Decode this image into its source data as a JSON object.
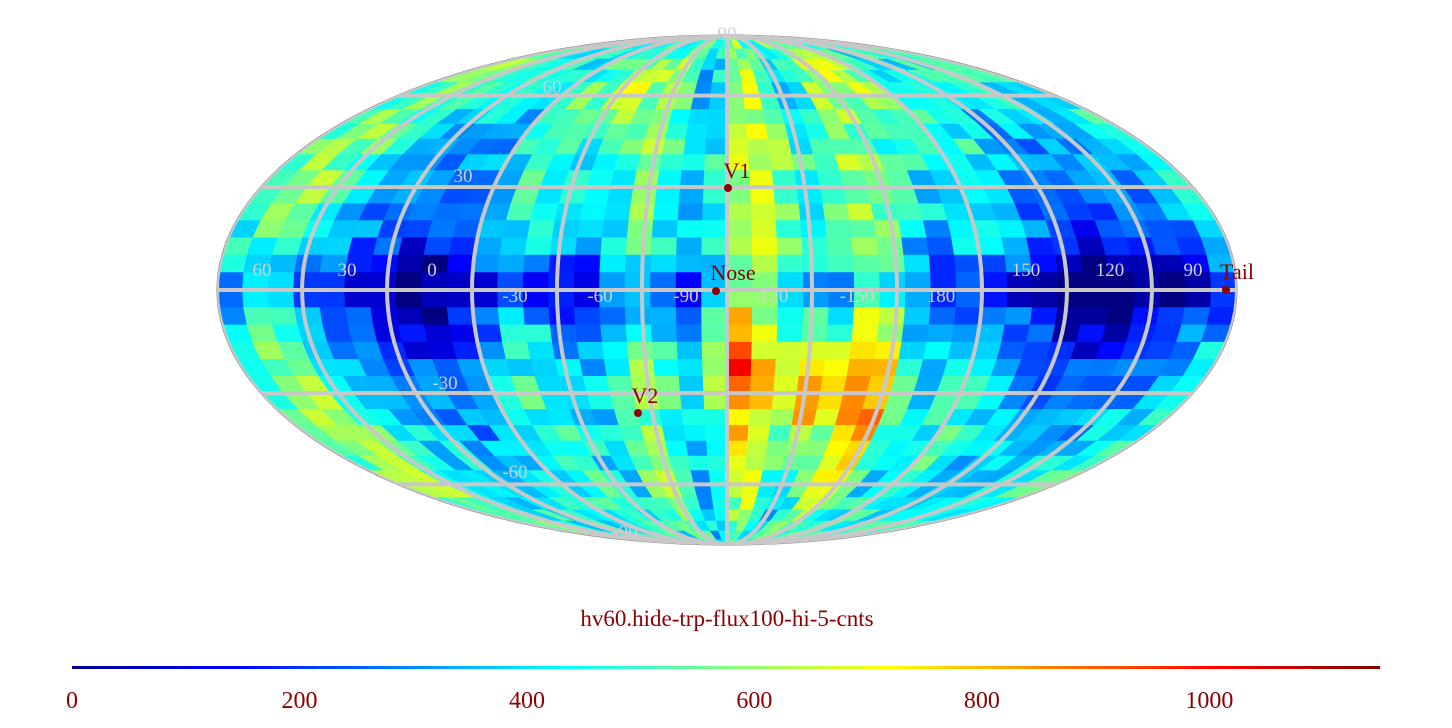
{
  "map": {
    "projection": "mollweide",
    "title": "hv60.hide-trp-flux100-hi-5-cnts",
    "colormap": "jet",
    "colors": {
      "grid": "#c8c8c8",
      "marker": "#8b0000",
      "title": "#8b0000"
    },
    "grid_labels": {
      "latitude": [
        "90",
        "60",
        "30",
        "-30",
        "-60",
        "-90"
      ],
      "longitude": [
        "60",
        "30",
        "0",
        "-30",
        "-60",
        "-90",
        "-120",
        "-150",
        "180",
        "150",
        "120",
        "90"
      ]
    },
    "markers": [
      {
        "name": "V1"
      },
      {
        "name": "Nose"
      },
      {
        "name": "V2"
      },
      {
        "name": "Tail"
      }
    ],
    "colorbar": {
      "min": 0,
      "max": 1150,
      "ticks": [
        "0",
        "200",
        "400",
        "600",
        "800",
        "1000"
      ]
    }
  }
}
